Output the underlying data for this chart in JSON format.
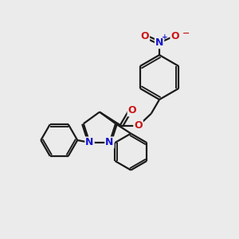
{
  "bg_color": "#ebebeb",
  "bond_color": "#1a1a1a",
  "nitrogen_color": "#1414cc",
  "oxygen_color": "#cc1414",
  "line_width": 1.6,
  "figsize": [
    3.0,
    3.0
  ],
  "dpi": 100,
  "xlim": [
    0,
    10
  ],
  "ylim": [
    0,
    10
  ]
}
